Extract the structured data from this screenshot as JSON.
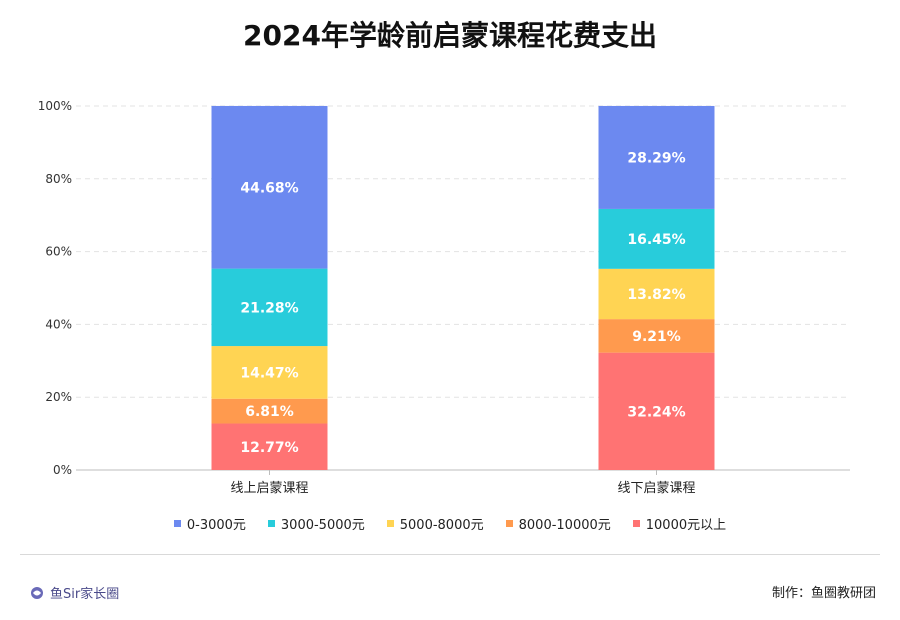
{
  "header": {
    "title": "2024年学龄前启蒙课程花费支出"
  },
  "footer": {
    "brand": "鱼Sir家长圈",
    "credit": "制作：鱼圈教研团"
  },
  "chart_data": {
    "type": "bar",
    "stacked": true,
    "title": "2024年学龄前启蒙课程花费支出",
    "categories": [
      "线上启蒙课程",
      "线下启蒙课程"
    ],
    "series": [
      {
        "name": "10000元以上",
        "color": "#FF7373",
        "values": [
          12.77,
          32.24
        ]
      },
      {
        "name": "8000-10000元",
        "color": "#FF9A4E",
        "values": [
          6.81,
          9.21
        ]
      },
      {
        "name": "5000-8000元",
        "color": "#FFD453",
        "values": [
          14.47,
          13.82
        ]
      },
      {
        "name": "3000-5000元",
        "color": "#28CCDB",
        "values": [
          21.28,
          16.45
        ]
      },
      {
        "name": "0-3000元",
        "color": "#6C89F0",
        "values": [
          44.68,
          28.29
        ]
      }
    ],
    "legend_order": [
      "0-3000元",
      "3000-5000元",
      "5000-8000元",
      "8000-10000元",
      "10000元以上"
    ],
    "y_ticks": [
      "0%",
      "20%",
      "40%",
      "60%",
      "80%",
      "100%"
    ],
    "ylim": [
      0,
      100
    ],
    "xlabel": "",
    "ylabel": "",
    "grid": true,
    "legend_position": "bottom"
  }
}
